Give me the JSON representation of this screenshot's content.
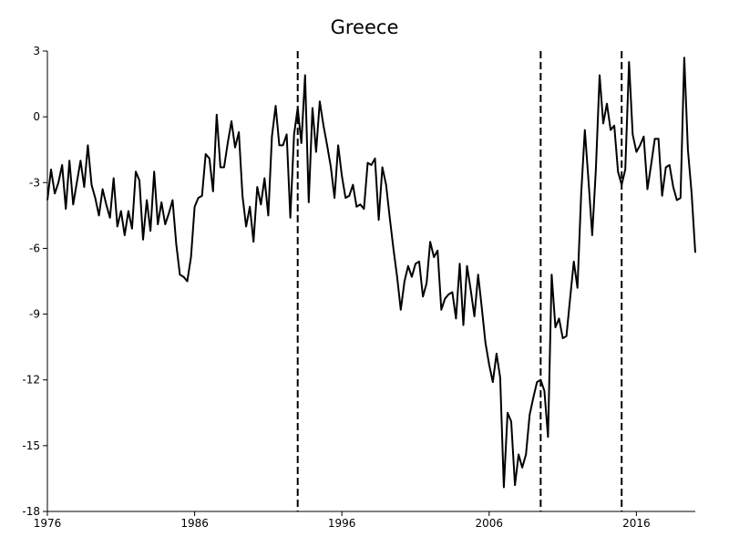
{
  "chart_data": {
    "type": "line",
    "title": "Greece",
    "xlabel": "",
    "ylabel": "",
    "xlim": [
      1976,
      2020.0
    ],
    "ylim": [
      -18,
      3
    ],
    "x_ticks": [
      1976,
      1986,
      1996,
      2006,
      2016
    ],
    "y_ticks": [
      3,
      0,
      -3,
      -6,
      -9,
      -12,
      -15,
      -18
    ],
    "grid": false,
    "legend": "none",
    "vlines": [
      {
        "x": 1993.0,
        "style": "dashed"
      },
      {
        "x": 2009.5,
        "style": "dashed"
      },
      {
        "x": 2015.0,
        "style": "dashed"
      }
    ],
    "series": [
      {
        "color": "#000000",
        "points": [
          [
            1976.0,
            -3.8
          ],
          [
            1976.25,
            -2.4
          ],
          [
            1976.5,
            -3.5
          ],
          [
            1976.75,
            -3.0
          ],
          [
            1977.0,
            -2.2
          ],
          [
            1977.25,
            -4.2
          ],
          [
            1977.5,
            -2.0
          ],
          [
            1977.75,
            -4.0
          ],
          [
            1978.0,
            -3.0
          ],
          [
            1978.25,
            -2.0
          ],
          [
            1978.5,
            -3.2
          ],
          [
            1978.75,
            -1.3
          ],
          [
            1979.0,
            -3.1
          ],
          [
            1979.25,
            -3.7
          ],
          [
            1979.5,
            -4.5
          ],
          [
            1979.75,
            -3.3
          ],
          [
            1980.0,
            -4.0
          ],
          [
            1980.25,
            -4.6
          ],
          [
            1980.5,
            -2.8
          ],
          [
            1980.75,
            -5.0
          ],
          [
            1981.0,
            -4.3
          ],
          [
            1981.25,
            -5.4
          ],
          [
            1981.5,
            -4.3
          ],
          [
            1981.75,
            -5.1
          ],
          [
            1982.0,
            -2.5
          ],
          [
            1982.25,
            -2.9
          ],
          [
            1982.5,
            -5.6
          ],
          [
            1982.75,
            -3.8
          ],
          [
            1983.0,
            -5.2
          ],
          [
            1983.25,
            -2.5
          ],
          [
            1983.5,
            -4.9
          ],
          [
            1983.75,
            -3.9
          ],
          [
            1984.0,
            -4.9
          ],
          [
            1984.25,
            -4.4
          ],
          [
            1984.5,
            -3.8
          ],
          [
            1984.75,
            -5.8
          ],
          [
            1985.0,
            -7.2
          ],
          [
            1985.25,
            -7.3
          ],
          [
            1985.5,
            -7.5
          ],
          [
            1985.75,
            -6.4
          ],
          [
            1986.0,
            -4.1
          ],
          [
            1986.25,
            -3.7
          ],
          [
            1986.5,
            -3.6
          ],
          [
            1986.75,
            -1.7
          ],
          [
            1987.0,
            -1.9
          ],
          [
            1987.25,
            -3.4
          ],
          [
            1987.5,
            0.1
          ],
          [
            1987.75,
            -2.3
          ],
          [
            1988.0,
            -2.3
          ],
          [
            1988.25,
            -1.2
          ],
          [
            1988.5,
            -0.2
          ],
          [
            1988.75,
            -1.4
          ],
          [
            1989.0,
            -0.7
          ],
          [
            1989.25,
            -3.6
          ],
          [
            1989.5,
            -5.0
          ],
          [
            1989.75,
            -4.1
          ],
          [
            1990.0,
            -5.7
          ],
          [
            1990.25,
            -3.2
          ],
          [
            1990.5,
            -4.0
          ],
          [
            1990.75,
            -2.8
          ],
          [
            1991.0,
            -4.5
          ],
          [
            1991.25,
            -0.9
          ],
          [
            1991.5,
            0.5
          ],
          [
            1991.75,
            -1.3
          ],
          [
            1992.0,
            -1.3
          ],
          [
            1992.25,
            -0.8
          ],
          [
            1992.5,
            -4.6
          ],
          [
            1992.75,
            -0.8
          ],
          [
            1993.0,
            0.4
          ],
          [
            1993.25,
            -1.2
          ],
          [
            1993.5,
            1.9
          ],
          [
            1993.75,
            -3.9
          ],
          [
            1994.0,
            0.4
          ],
          [
            1994.25,
            -1.6
          ],
          [
            1994.5,
            0.7
          ],
          [
            1994.75,
            -0.4
          ],
          [
            1995.0,
            -1.3
          ],
          [
            1995.25,
            -2.3
          ],
          [
            1995.5,
            -3.7
          ],
          [
            1995.75,
            -1.3
          ],
          [
            1996.0,
            -2.7
          ],
          [
            1996.25,
            -3.7
          ],
          [
            1996.5,
            -3.6
          ],
          [
            1996.75,
            -3.1
          ],
          [
            1997.0,
            -4.1
          ],
          [
            1997.25,
            -4.0
          ],
          [
            1997.5,
            -4.2
          ],
          [
            1997.75,
            -2.1
          ],
          [
            1998.0,
            -2.2
          ],
          [
            1998.25,
            -1.9
          ],
          [
            1998.5,
            -4.7
          ],
          [
            1998.75,
            -2.3
          ],
          [
            1999.0,
            -3.1
          ],
          [
            1999.25,
            -4.6
          ],
          [
            1999.5,
            -6.0
          ],
          [
            1999.75,
            -7.3
          ],
          [
            2000.0,
            -8.8
          ],
          [
            2000.25,
            -7.5
          ],
          [
            2000.5,
            -6.8
          ],
          [
            2000.75,
            -7.3
          ],
          [
            2001.0,
            -6.7
          ],
          [
            2001.25,
            -6.6
          ],
          [
            2001.5,
            -8.2
          ],
          [
            2001.75,
            -7.6
          ],
          [
            2002.0,
            -5.7
          ],
          [
            2002.25,
            -6.4
          ],
          [
            2002.5,
            -6.1
          ],
          [
            2002.75,
            -8.8
          ],
          [
            2003.0,
            -8.3
          ],
          [
            2003.25,
            -8.1
          ],
          [
            2003.5,
            -8.0
          ],
          [
            2003.75,
            -9.2
          ],
          [
            2004.0,
            -6.7
          ],
          [
            2004.25,
            -9.5
          ],
          [
            2004.5,
            -6.8
          ],
          [
            2004.75,
            -7.9
          ],
          [
            2005.0,
            -9.1
          ],
          [
            2005.25,
            -7.2
          ],
          [
            2005.5,
            -8.7
          ],
          [
            2005.75,
            -10.3
          ],
          [
            2006.0,
            -11.3
          ],
          [
            2006.25,
            -12.1
          ],
          [
            2006.5,
            -10.8
          ],
          [
            2006.75,
            -11.9
          ],
          [
            2007.0,
            -16.9
          ],
          [
            2007.25,
            -13.5
          ],
          [
            2007.5,
            -13.9
          ],
          [
            2007.75,
            -16.8
          ],
          [
            2008.0,
            -15.4
          ],
          [
            2008.25,
            -16.0
          ],
          [
            2008.5,
            -15.4
          ],
          [
            2008.75,
            -13.6
          ],
          [
            2009.0,
            -12.8
          ],
          [
            2009.25,
            -12.1
          ],
          [
            2009.5,
            -12.0
          ],
          [
            2009.75,
            -12.5
          ],
          [
            2010.0,
            -14.6
          ],
          [
            2010.25,
            -7.2
          ],
          [
            2010.5,
            -9.6
          ],
          [
            2010.75,
            -9.2
          ],
          [
            2011.0,
            -10.1
          ],
          [
            2011.25,
            -10.0
          ],
          [
            2011.5,
            -8.3
          ],
          [
            2011.75,
            -6.6
          ],
          [
            2012.0,
            -7.8
          ],
          [
            2012.25,
            -3.5
          ],
          [
            2012.5,
            -0.6
          ],
          [
            2012.75,
            -2.9
          ],
          [
            2013.0,
            -5.4
          ],
          [
            2013.25,
            -2.4
          ],
          [
            2013.5,
            1.9
          ],
          [
            2013.75,
            -0.3
          ],
          [
            2014.0,
            0.6
          ],
          [
            2014.25,
            -0.6
          ],
          [
            2014.5,
            -0.4
          ],
          [
            2014.75,
            -2.5
          ],
          [
            2015.0,
            -3.1
          ],
          [
            2015.25,
            -2.4
          ],
          [
            2015.5,
            2.5
          ],
          [
            2015.75,
            -0.8
          ],
          [
            2016.0,
            -1.6
          ],
          [
            2016.25,
            -1.3
          ],
          [
            2016.5,
            -0.9
          ],
          [
            2016.75,
            -3.3
          ],
          [
            2017.0,
            -2.2
          ],
          [
            2017.25,
            -1.0
          ],
          [
            2017.5,
            -1.0
          ],
          [
            2017.75,
            -3.6
          ],
          [
            2018.0,
            -2.3
          ],
          [
            2018.25,
            -2.2
          ],
          [
            2018.5,
            -3.2
          ],
          [
            2018.75,
            -3.8
          ],
          [
            2019.0,
            -3.7
          ],
          [
            2019.25,
            2.7
          ],
          [
            2019.5,
            -1.5
          ],
          [
            2019.75,
            -3.5
          ],
          [
            2020.0,
            -6.2
          ]
        ]
      }
    ]
  }
}
